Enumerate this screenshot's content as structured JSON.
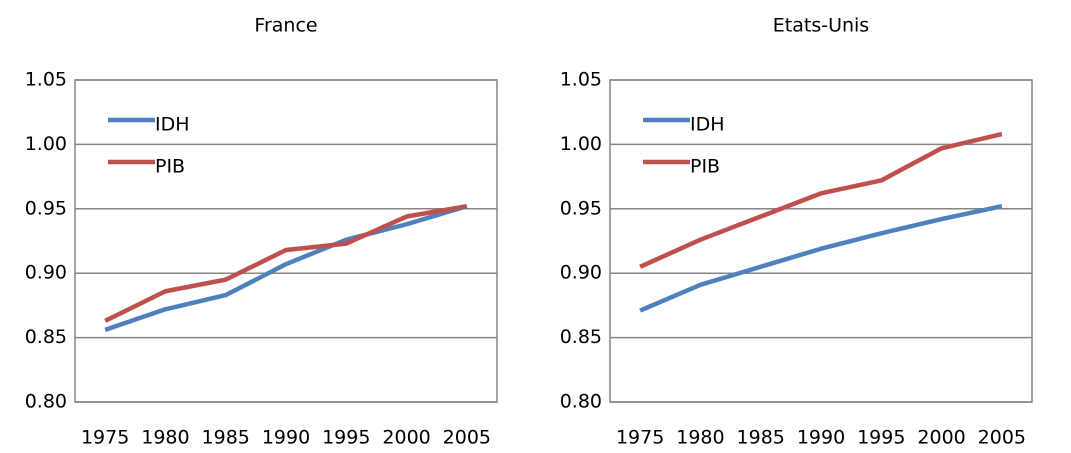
{
  "chart_data": [
    {
      "type": "line",
      "title": "France",
      "categories": [
        "1975",
        "1980",
        "1985",
        "1990",
        "1995",
        "2000",
        "2005"
      ],
      "series": [
        {
          "name": "IDH",
          "color": "#4f81bd",
          "values": [
            0.856,
            0.872,
            0.883,
            0.907,
            0.926,
            0.938,
            0.952
          ]
        },
        {
          "name": "PIB",
          "color": "#c0504d",
          "values": [
            0.863,
            0.886,
            0.895,
            0.918,
            0.923,
            0.944,
            0.952
          ]
        }
      ],
      "ylim": [
        0.8,
        1.05
      ],
      "yticks": [
        {
          "value": 0.8,
          "label": "0.80"
        },
        0.85,
        {
          "value": 0.9,
          "label": "0.90"
        },
        0.95,
        {
          "value": 1,
          "label": "1.00"
        },
        1.05
      ],
      "grid": true,
      "legend": "upper left"
    },
    {
      "type": "line",
      "title": "Etats-Unis",
      "categories": [
        "1975",
        "1980",
        "1985",
        "1990",
        "1995",
        "2000",
        "2005"
      ],
      "series": [
        {
          "name": "IDH",
          "color": "#4f81bd",
          "values": [
            0.871,
            0.891,
            0.905,
            0.919,
            0.931,
            0.942,
            0.952
          ]
        },
        {
          "name": "PIB",
          "color": "#c0504d",
          "values": [
            0.905,
            0.926,
            0.944,
            0.962,
            0.972,
            0.997,
            1.008
          ]
        }
      ],
      "ylim": [
        0.8,
        1.05
      ],
      "yticks": [
        {
          "value": 0.8,
          "label": "0.80"
        },
        0.85,
        {
          "value": 0.9,
          "label": "0.90"
        },
        0.95,
        {
          "value": 1,
          "label": "1.00"
        },
        1.05
      ],
      "grid": true,
      "legend": "upper left"
    }
  ]
}
